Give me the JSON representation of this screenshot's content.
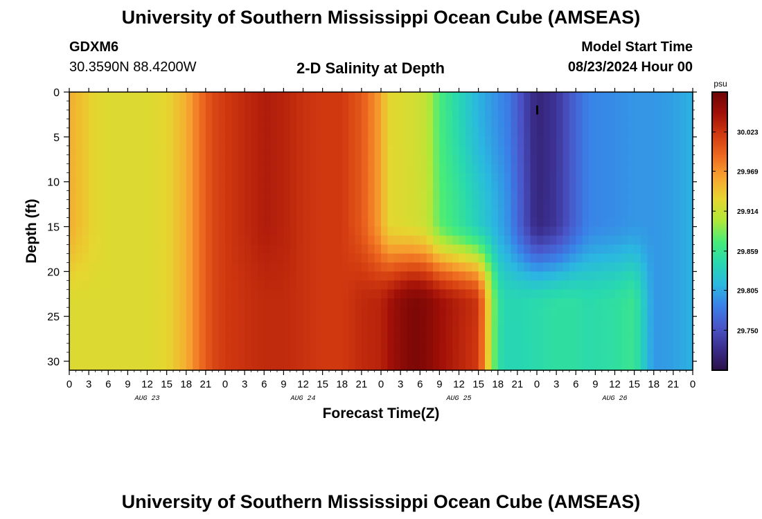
{
  "page": {
    "title": "University of Southern Mississippi Ocean Cube (AMSEAS)",
    "footer_title": "University of Southern Mississippi Ocean Cube (AMSEAS)",
    "station": {
      "id": "GDXM6",
      "coords": "30.3590N  88.4200W"
    },
    "model_start": {
      "label": "Model Start Time",
      "value": "08/23/2024 Hour 00"
    }
  },
  "chart_data": {
    "type": "heatmap",
    "title": "2-D Salinity at Depth",
    "xlabel": "Forecast Time(Z)",
    "ylabel": "Depth (ft)",
    "x_range_hours": [
      0,
      96
    ],
    "x_tick_labels": [
      "0",
      "3",
      "6",
      "9",
      "12",
      "15",
      "18",
      "21",
      "0",
      "3",
      "6",
      "9",
      "12",
      "15",
      "18",
      "21",
      "0",
      "3",
      "6",
      "9",
      "12",
      "15",
      "18",
      "21",
      "0",
      "3",
      "6",
      "9",
      "12",
      "15",
      "18",
      "21",
      "0"
    ],
    "day_labels": [
      "AUG 23",
      "AUG 24",
      "AUG 25",
      "AUG 26"
    ],
    "y_range": [
      0,
      31
    ],
    "y_ticks": [
      0,
      5,
      10,
      15,
      20,
      25,
      30
    ],
    "y_inverted": true,
    "colorbar": {
      "unit": "psu",
      "range": [
        29.695,
        30.078
      ],
      "ticks": [
        "30.023",
        "29.969",
        "29.914",
        "29.859",
        "29.805",
        "29.750"
      ],
      "colors": [
        "#2b1048",
        "#3a2d8c",
        "#4a55c8",
        "#3a80e8",
        "#2ab8e0",
        "#28d8b0",
        "#48ec78",
        "#b0e838",
        "#e6d630",
        "#f7a530",
        "#ee6a20",
        "#d23a10",
        "#a11008",
        "#6e0505"
      ]
    },
    "fields": {
      "x_hours": [
        0,
        4,
        6,
        9,
        12,
        15,
        18,
        20,
        22,
        24,
        27,
        30,
        33,
        36,
        39,
        42,
        45,
        48,
        49,
        51,
        53,
        55,
        57,
        60,
        63,
        66,
        67.5,
        69,
        72,
        75,
        78,
        80,
        84,
        87,
        90,
        93,
        96
      ],
      "surface": [
        29.955,
        29.93,
        29.925,
        29.925,
        29.925,
        29.93,
        29.955,
        29.985,
        30.01,
        30.02,
        30.03,
        30.04,
        30.035,
        30.025,
        30.02,
        30.02,
        30.0,
        29.96,
        29.93,
        29.925,
        29.92,
        29.91,
        29.87,
        29.84,
        29.81,
        29.79,
        29.78,
        29.76,
        29.715,
        29.73,
        29.765,
        29.785,
        29.79,
        29.795,
        29.795,
        29.8,
        29.81
      ],
      "bottom": [
        29.925,
        29.925,
        29.925,
        29.925,
        29.925,
        29.93,
        29.955,
        29.985,
        30.01,
        30.02,
        30.025,
        30.03,
        30.03,
        30.025,
        30.02,
        30.02,
        30.03,
        30.035,
        30.045,
        30.06,
        30.07,
        30.065,
        30.05,
        30.035,
        30.02,
        29.85,
        29.84,
        29.84,
        29.845,
        29.85,
        29.85,
        29.845,
        29.85,
        29.86,
        29.795,
        29.8,
        29.81
      ]
    }
  }
}
